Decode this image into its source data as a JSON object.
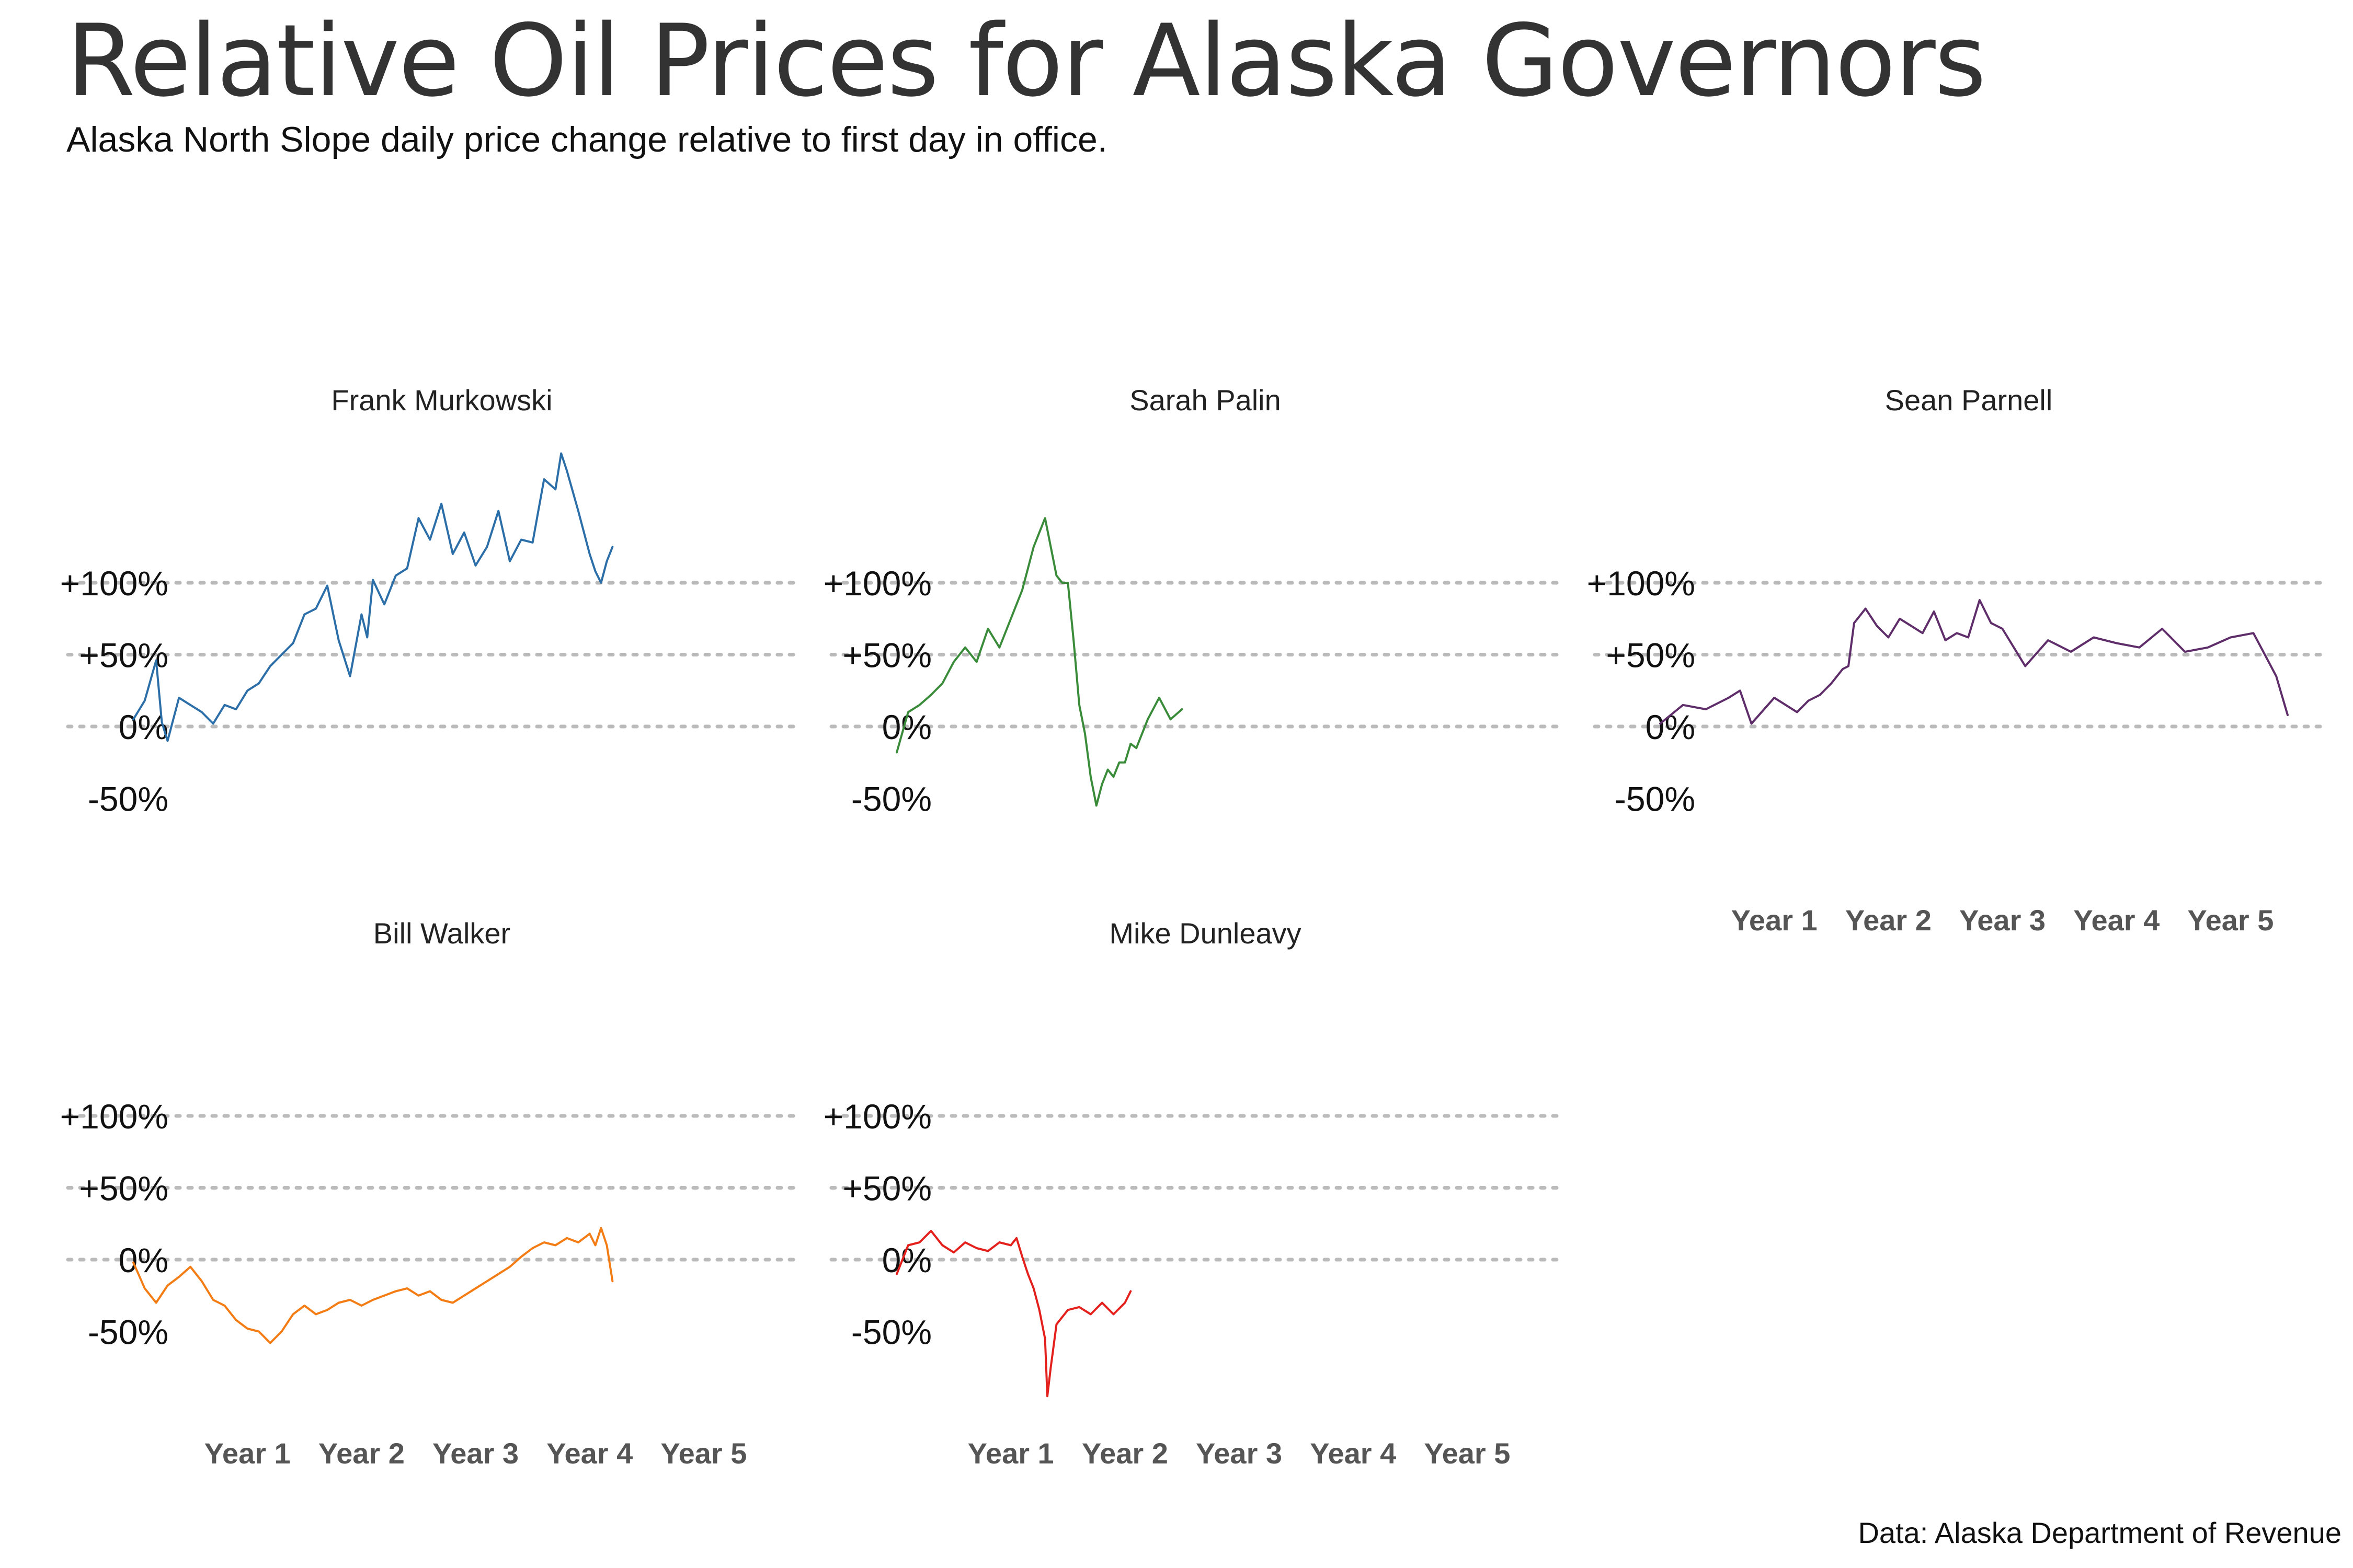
{
  "title": "Relative Oil Prices for Alaska Governors",
  "subtitle": "Alaska North Slope daily price change relative to first day in office.",
  "caption": "Data: Alaska Department of Revenue",
  "chart_data": {
    "type": "line",
    "layout": "small-multiples",
    "x_tick_labels": [
      "Year 1",
      "Year 2",
      "Year 3",
      "Year 4",
      "Year 5"
    ],
    "xlim": [
      0,
      5.5
    ],
    "x_ticks": [
      1,
      2,
      3,
      4,
      5
    ],
    "ylim": [
      -0.62,
      1.95
    ],
    "y_ticks": [
      -0.5,
      0,
      0.5,
      1.0
    ],
    "y_tick_labels": [
      "-50%",
      "0%",
      "+50%",
      "+100%"
    ],
    "gridlines": [
      0,
      0.5,
      1.0
    ],
    "grid_style": "dotted horizontal",
    "panels": [
      {
        "name": "Frank Murkowski",
        "color": "#2c6ea8",
        "x_labels_shown": false,
        "x": [
          0,
          0.1,
          0.2,
          0.25,
          0.3,
          0.4,
          0.5,
          0.6,
          0.7,
          0.8,
          0.9,
          1.0,
          1.1,
          1.2,
          1.3,
          1.4,
          1.5,
          1.6,
          1.7,
          1.8,
          1.9,
          2.0,
          2.05,
          2.1,
          2.2,
          2.3,
          2.4,
          2.5,
          2.6,
          2.7,
          2.8,
          2.9,
          3.0,
          3.1,
          3.2,
          3.3,
          3.4,
          3.5,
          3.55,
          3.6,
          3.7,
          3.75,
          3.8,
          3.9,
          4.0,
          4.05,
          4.1,
          4.15,
          4.2
        ],
        "values": [
          0.05,
          0.18,
          0.46,
          0.03,
          -0.1,
          0.2,
          0.15,
          0.1,
          0.02,
          0.15,
          0.12,
          0.25,
          0.3,
          0.42,
          0.5,
          0.58,
          0.78,
          0.82,
          0.98,
          0.6,
          0.35,
          0.78,
          0.62,
          1.02,
          0.85,
          1.05,
          1.1,
          1.45,
          1.3,
          1.55,
          1.2,
          1.35,
          1.12,
          1.25,
          1.5,
          1.15,
          1.3,
          1.28,
          1.5,
          1.72,
          1.65,
          1.9,
          1.78,
          1.5,
          1.2,
          1.08,
          1.0,
          1.15,
          1.25
        ]
      },
      {
        "name": "Sarah Palin",
        "color": "#3a8c3a",
        "x_labels_shown": false,
        "x": [
          0,
          0.1,
          0.2,
          0.3,
          0.4,
          0.5,
          0.6,
          0.7,
          0.8,
          0.9,
          1.0,
          1.1,
          1.2,
          1.3,
          1.4,
          1.45,
          1.5,
          1.55,
          1.6,
          1.65,
          1.7,
          1.75,
          1.8,
          1.85,
          1.9,
          1.95,
          2.0,
          2.05,
          2.1,
          2.2,
          2.3,
          2.4,
          2.5
        ],
        "values": [
          -0.18,
          0.1,
          0.15,
          0.22,
          0.3,
          0.45,
          0.55,
          0.45,
          0.68,
          0.55,
          0.75,
          0.95,
          1.25,
          1.45,
          1.05,
          1.0,
          1.0,
          0.6,
          0.15,
          -0.05,
          -0.35,
          -0.55,
          -0.4,
          -0.3,
          -0.35,
          -0.25,
          -0.25,
          -0.12,
          -0.15,
          0.05,
          0.2,
          0.05,
          0.12
        ]
      },
      {
        "name": "Sean Parnell",
        "color": "#5e2d6a",
        "x_labels_shown": true,
        "x": [
          0,
          0.2,
          0.4,
          0.6,
          0.7,
          0.8,
          1.0,
          1.2,
          1.3,
          1.4,
          1.5,
          1.6,
          1.65,
          1.7,
          1.8,
          1.9,
          2.0,
          2.1,
          2.2,
          2.3,
          2.4,
          2.5,
          2.6,
          2.7,
          2.8,
          2.9,
          3.0,
          3.2,
          3.4,
          3.6,
          3.8,
          4.0,
          4.2,
          4.4,
          4.6,
          4.8,
          5.0,
          5.2,
          5.3,
          5.4,
          5.5
        ],
        "values": [
          0.02,
          0.15,
          0.12,
          0.2,
          0.25,
          0.02,
          0.2,
          0.1,
          0.18,
          0.22,
          0.3,
          0.4,
          0.42,
          0.72,
          0.82,
          0.7,
          0.62,
          0.75,
          0.7,
          0.65,
          0.8,
          0.6,
          0.65,
          0.62,
          0.88,
          0.72,
          0.68,
          0.42,
          0.6,
          0.52,
          0.62,
          0.58,
          0.55,
          0.68,
          0.52,
          0.55,
          0.62,
          0.65,
          0.5,
          0.35,
          0.08
        ]
      },
      {
        "name": "Bill Walker",
        "color": "#f47c14",
        "x_labels_shown": true,
        "x": [
          0,
          0.1,
          0.2,
          0.3,
          0.4,
          0.5,
          0.6,
          0.7,
          0.8,
          0.9,
          1.0,
          1.1,
          1.2,
          1.3,
          1.4,
          1.5,
          1.6,
          1.7,
          1.8,
          1.9,
          2.0,
          2.1,
          2.2,
          2.3,
          2.4,
          2.5,
          2.6,
          2.7,
          2.8,
          2.9,
          3.0,
          3.1,
          3.2,
          3.3,
          3.4,
          3.5,
          3.6,
          3.7,
          3.8,
          3.9,
          4.0,
          4.05,
          4.1,
          4.15,
          4.2
        ],
        "values": [
          -0.02,
          -0.2,
          -0.3,
          -0.18,
          -0.12,
          -0.05,
          -0.15,
          -0.28,
          -0.32,
          -0.42,
          -0.48,
          -0.5,
          -0.58,
          -0.5,
          -0.38,
          -0.32,
          -0.38,
          -0.35,
          -0.3,
          -0.28,
          -0.32,
          -0.28,
          -0.25,
          -0.22,
          -0.2,
          -0.25,
          -0.22,
          -0.28,
          -0.3,
          -0.25,
          -0.2,
          -0.15,
          -0.1,
          -0.05,
          0.02,
          0.08,
          0.12,
          0.1,
          0.15,
          0.12,
          0.18,
          0.1,
          0.22,
          0.1,
          -0.15
        ]
      },
      {
        "name": "Mike Dunleavy",
        "color": "#e3201c",
        "x_labels_shown": true,
        "x": [
          0,
          0.1,
          0.2,
          0.3,
          0.4,
          0.5,
          0.6,
          0.7,
          0.8,
          0.9,
          1.0,
          1.05,
          1.1,
          1.15,
          1.2,
          1.25,
          1.3,
          1.32,
          1.35,
          1.4,
          1.5,
          1.6,
          1.7,
          1.8,
          1.9,
          2.0,
          2.05
        ],
        "values": [
          -0.1,
          0.1,
          0.12,
          0.2,
          0.1,
          0.05,
          0.12,
          0.08,
          0.06,
          0.12,
          0.1,
          0.15,
          0.02,
          -0.1,
          -0.2,
          -0.35,
          -0.55,
          -0.95,
          -0.75,
          -0.45,
          -0.35,
          -0.33,
          -0.38,
          -0.3,
          -0.38,
          -0.3,
          -0.22
        ]
      }
    ]
  }
}
